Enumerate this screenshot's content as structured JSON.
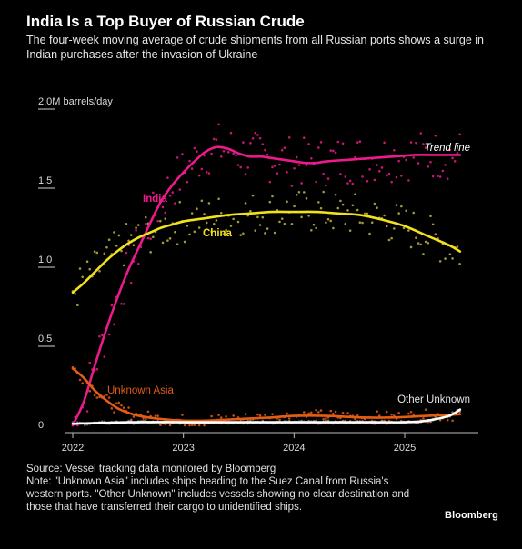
{
  "title": "India Is a Top Buyer of Russian Crude",
  "subtitle": "The four-week moving average of crude shipments from all Russian ports shows a surge in Indian purchases after the invasion of Ukraine",
  "footer": {
    "source": "Source: Vessel tracking data monitored by Bloomberg",
    "note": "Note: \"Unknown Asia\" includes ships heading to the Suez Canal from Russia's western ports. \"Other Unknown\" includes vessels showing no clear destination and those that have transferred their cargo to unidentified ships."
  },
  "brand": "Bloomberg",
  "colors": {
    "India": "#ec1a8a",
    "China": "#f2e21b",
    "Unknown Asia": "#e35d15",
    "Other Unknown": "#ffffff"
  },
  "chart_data": {
    "type": "line",
    "ylabel": "",
    "y_unit_label": "2.0M barrels/day",
    "y_ticks": [
      "2.0M barrels/day",
      "1.5",
      "1.0",
      "0.5",
      "0"
    ],
    "y_tick_values": [
      2.0,
      1.5,
      1.0,
      0.5,
      0
    ],
    "x_ticks": [
      "2022",
      "2023",
      "2024",
      "2025"
    ],
    "x_tick_values": [
      2022,
      2023,
      2024,
      2025
    ],
    "xlim": [
      2022,
      2025.6
    ],
    "ylim": [
      0,
      2.0
    ],
    "grid": false,
    "annotations": [
      "Trend line"
    ],
    "series": [
      {
        "name": "India",
        "style": "trend line with weekly dots",
        "x": [
          2022.0,
          2022.1,
          2022.2,
          2022.3,
          2022.4,
          2022.5,
          2022.6,
          2022.7,
          2022.8,
          2022.9,
          2023.0,
          2023.1,
          2023.2,
          2023.3,
          2023.4,
          2023.5,
          2023.6,
          2023.7,
          2023.8,
          2023.9,
          2024.0,
          2024.1,
          2024.2,
          2024.3,
          2024.5,
          2024.7,
          2024.9,
          2025.1,
          2025.3,
          2025.5
        ],
        "y": [
          0.0,
          0.15,
          0.38,
          0.6,
          0.8,
          0.98,
          1.13,
          1.28,
          1.42,
          1.52,
          1.6,
          1.67,
          1.73,
          1.76,
          1.75,
          1.72,
          1.7,
          1.7,
          1.69,
          1.68,
          1.67,
          1.66,
          1.66,
          1.67,
          1.68,
          1.69,
          1.7,
          1.71,
          1.71,
          1.71
        ]
      },
      {
        "name": "China",
        "style": "trend line with weekly dots",
        "x": [
          2022.0,
          2022.1,
          2022.2,
          2022.3,
          2022.4,
          2022.5,
          2022.6,
          2022.7,
          2022.8,
          2022.9,
          2023.0,
          2023.2,
          2023.4,
          2023.6,
          2023.8,
          2024.0,
          2024.2,
          2024.4,
          2024.6,
          2024.8,
          2025.0,
          2025.2,
          2025.4,
          2025.5
        ],
        "y": [
          0.84,
          0.9,
          0.97,
          1.04,
          1.1,
          1.15,
          1.19,
          1.22,
          1.25,
          1.27,
          1.29,
          1.31,
          1.33,
          1.34,
          1.35,
          1.35,
          1.35,
          1.34,
          1.33,
          1.3,
          1.26,
          1.2,
          1.14,
          1.1
        ]
      },
      {
        "name": "Unknown Asia",
        "style": "trend line with weekly dots",
        "x": [
          2022.0,
          2022.1,
          2022.2,
          2022.3,
          2022.4,
          2022.5,
          2022.6,
          2022.8,
          2023.0,
          2023.2,
          2023.5,
          2023.8,
          2024.0,
          2024.3,
          2024.6,
          2024.9,
          2025.2,
          2025.5
        ],
        "y": [
          0.36,
          0.3,
          0.22,
          0.16,
          0.11,
          0.08,
          0.06,
          0.04,
          0.03,
          0.03,
          0.04,
          0.05,
          0.06,
          0.06,
          0.05,
          0.05,
          0.06,
          0.07
        ]
      },
      {
        "name": "Other Unknown",
        "style": "trend line with weekly dots",
        "x": [
          2022.0,
          2022.5,
          2023.0,
          2023.5,
          2024.0,
          2024.5,
          2025.0,
          2025.2,
          2025.4,
          2025.5
        ],
        "y": [
          0.01,
          0.02,
          0.02,
          0.02,
          0.02,
          0.02,
          0.02,
          0.03,
          0.06,
          0.1
        ]
      }
    ]
  }
}
